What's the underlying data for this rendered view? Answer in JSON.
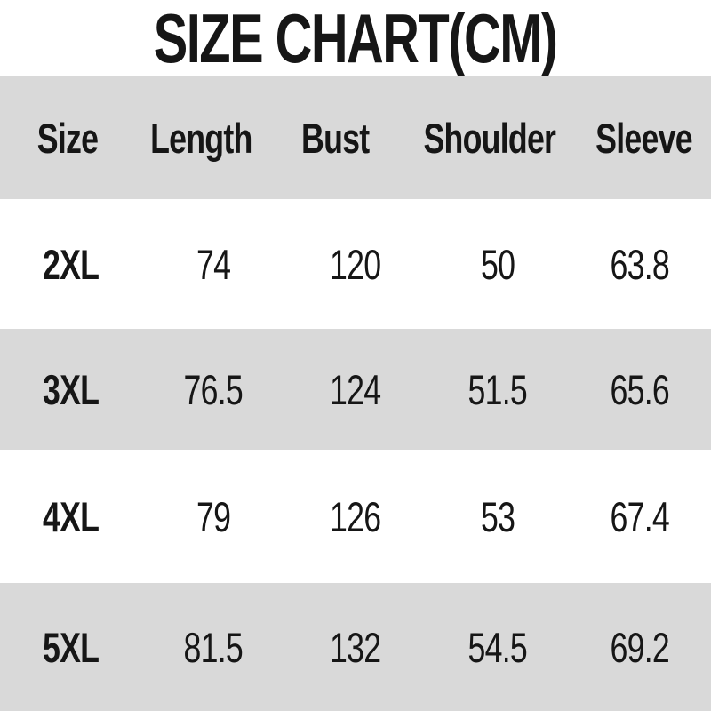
{
  "title": "SIZE CHART(CM)",
  "unit": "CM",
  "colors": {
    "band_gray": "#d9d9d9",
    "background": "#ffffff",
    "text": "#161616"
  },
  "table": {
    "headers": [
      "Size",
      "Length",
      "Bust",
      "Shoulder",
      "Sleeve"
    ],
    "rows": [
      [
        "2XL",
        "74",
        "120",
        "50",
        "63.8"
      ],
      [
        "3XL",
        "76.5",
        "124",
        "51.5",
        "65.6"
      ],
      [
        "4XL",
        "79",
        "126",
        "53",
        "67.4"
      ],
      [
        "5XL",
        "81.5",
        "132",
        "54.5",
        "69.2"
      ]
    ]
  },
  "chart_data": {
    "type": "table",
    "title": "SIZE CHART(CM)",
    "unit": "cm",
    "columns": [
      "Size",
      "Length",
      "Bust",
      "Shoulder",
      "Sleeve"
    ],
    "rows": [
      {
        "size": "2XL",
        "length": 74,
        "bust": 120,
        "shoulder": 50,
        "sleeve": 63.8
      },
      {
        "size": "3XL",
        "length": 76.5,
        "bust": 124,
        "shoulder": 51.5,
        "sleeve": 65.6
      },
      {
        "size": "4XL",
        "length": 79,
        "bust": 126,
        "shoulder": 53,
        "sleeve": 67.4
      },
      {
        "size": "5XL",
        "length": 81.5,
        "bust": 132,
        "shoulder": 54.5,
        "sleeve": 69.2
      }
    ],
    "layout": {
      "header_background": "#d9d9d9",
      "row_stripe": "alternating-white-gray",
      "text_align": "center"
    }
  }
}
